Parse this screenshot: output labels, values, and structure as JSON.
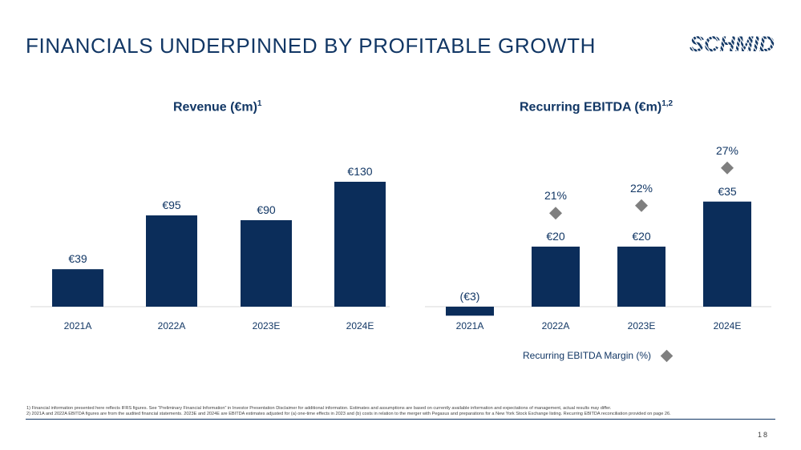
{
  "slide": {
    "title": "FINANCIALS UNDERPINNED BY PROFITABLE GROWTH",
    "logo_text": "SCHMID",
    "page_number": "18"
  },
  "colors": {
    "bar": "#0b2d5a",
    "marker": "#7f7f7f",
    "text": "#123765"
  },
  "chart_data": [
    {
      "type": "bar",
      "title": "Revenue (€m)",
      "title_sup": "1",
      "categories": [
        "2021A",
        "2022A",
        "2023E",
        "2024E"
      ],
      "values": [
        39,
        95,
        90,
        130
      ],
      "labels": [
        "€39",
        "€95",
        "€90",
        "€130"
      ],
      "xlabel": "",
      "ylabel": "",
      "ylim": [
        0,
        130
      ]
    },
    {
      "type": "bar",
      "title": "Recurring EBITDA (€m)",
      "title_sup": "1,2",
      "categories": [
        "2021A",
        "2022A",
        "2023E",
        "2024E"
      ],
      "values": [
        -3,
        20,
        20,
        35
      ],
      "labels": [
        "(€3)",
        "€20",
        "€20",
        "€35"
      ],
      "margin_series": {
        "name": "Recurring EBITDA Margin (%)",
        "values": [
          null,
          21,
          22,
          27
        ],
        "labels": [
          "",
          "21%",
          "22%",
          "27%"
        ]
      },
      "xlabel": "",
      "ylabel": "",
      "ylim": [
        -3,
        35
      ]
    }
  ],
  "legend": {
    "label": "Recurring EBITDA Margin (%)"
  },
  "footnotes": [
    "1) Financial information presented here reflects IFRS figures. See “Preliminary Financial Information” in Investor Presentation Disclaimer for additional information. Estimates and assumptions are based on currently available information and expectations of management, actual results may differ.",
    "2) 2021A and 2022A EBITDA figures are from the audited financial statements. 2023E and 2024E are EBITDA estimates adjusted for (a) one-time effects in 2023 and (b) costs in relation to the merger with Pegasus and preparations for a New York Stock Exchange listing. Recurring EBITDA reconciliation provided on page 26."
  ]
}
